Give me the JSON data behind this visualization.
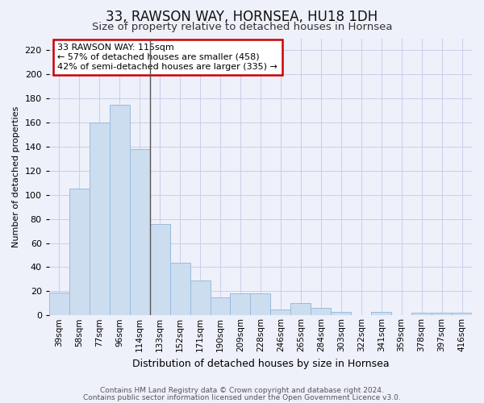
{
  "title1": "33, RAWSON WAY, HORNSEA, HU18 1DH",
  "title2": "Size of property relative to detached houses in Hornsea",
  "xlabel": "Distribution of detached houses by size in Hornsea",
  "ylabel": "Number of detached properties",
  "categories": [
    "39sqm",
    "58sqm",
    "77sqm",
    "96sqm",
    "114sqm",
    "133sqm",
    "152sqm",
    "171sqm",
    "190sqm",
    "209sqm",
    "228sqm",
    "246sqm",
    "265sqm",
    "284sqm",
    "303sqm",
    "322sqm",
    "341sqm",
    "359sqm",
    "378sqm",
    "397sqm",
    "416sqm"
  ],
  "values": [
    19,
    105,
    160,
    175,
    138,
    76,
    44,
    29,
    15,
    18,
    18,
    5,
    10,
    6,
    3,
    0,
    3,
    0,
    2,
    2,
    2
  ],
  "bar_color": "#ccddf0",
  "bar_edge_color": "#99bbdd",
  "vline_color": "#555555",
  "vline_index": 4,
  "annotation_text": "33 RAWSON WAY: 115sqm\n← 57% of detached houses are smaller (458)\n42% of semi-detached houses are larger (335) →",
  "annotation_box_facecolor": "#ffffff",
  "annotation_box_edgecolor": "#cc0000",
  "ylim": [
    0,
    230
  ],
  "yticks": [
    0,
    20,
    40,
    60,
    80,
    100,
    120,
    140,
    160,
    180,
    200,
    220
  ],
  "grid_color": "#c8cfe8",
  "bg_color": "#eef0fa",
  "footer1": "Contains HM Land Registry data © Crown copyright and database right 2024.",
  "footer2": "Contains public sector information licensed under the Open Government Licence v3.0.",
  "title1_fontsize": 12,
  "title2_fontsize": 9.5,
  "xlabel_fontsize": 9,
  "ylabel_fontsize": 8,
  "tick_fontsize": 8,
  "xtick_fontsize": 7.5,
  "annotation_fontsize": 8,
  "footer_fontsize": 6.5
}
